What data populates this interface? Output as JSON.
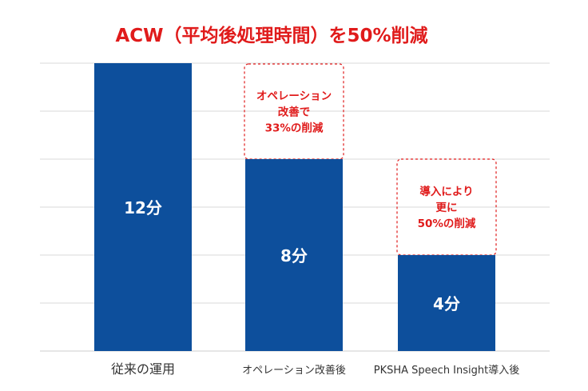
{
  "chart_data": {
    "type": "bar",
    "title": "ACW（平均後処理時間）を50%削減",
    "categories": [
      "従来の運用",
      "オペレーション改善後",
      "PKSHA Speech Insight導入後"
    ],
    "values": [
      12,
      8,
      4
    ],
    "value_labels": [
      "12分",
      "8分",
      "4分"
    ],
    "ylim": [
      0,
      12
    ],
    "grid": true,
    "annotations": [
      {
        "between": [
          0,
          1
        ],
        "lines": [
          "オペレーション",
          "改善で",
          "33%の削減"
        ]
      },
      {
        "between": [
          1,
          2
        ],
        "lines": [
          "導入により",
          "更に",
          "50%の削減"
        ]
      }
    ]
  },
  "colors": {
    "bar": "#0d4f9c",
    "title": "#e01b1b",
    "annotation": "#e01b1b",
    "grid": "#d9d9d9",
    "bar_label": "#ffffff"
  }
}
